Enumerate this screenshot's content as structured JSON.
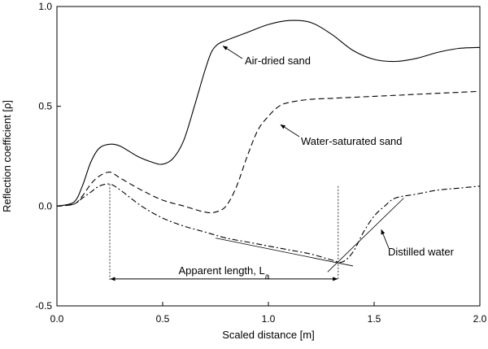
{
  "chart_data": {
    "type": "line",
    "xlabel": "Scaled distance [m]",
    "ylabel": "Reflection coefficient [ρ]",
    "xlim": [
      0.0,
      2.0
    ],
    "ylim": [
      -0.5,
      1.0
    ],
    "xticks": [
      0.0,
      0.5,
      1.0,
      1.5,
      2.0
    ],
    "xtick_labels": [
      "0.0",
      "0.5",
      "1.0",
      "1.5",
      "2.0"
    ],
    "yticks": [
      1.0,
      0.5,
      0.0,
      -0.5
    ],
    "ytick_labels": [
      "1.0",
      "0.5",
      "0.0",
      "-0.5"
    ],
    "grid": false,
    "legend": "none",
    "series": [
      {
        "name": "Air-dried sand",
        "style": "solid",
        "x": [
          0.0,
          0.08,
          0.12,
          0.16,
          0.2,
          0.25,
          0.3,
          0.38,
          0.45,
          0.5,
          0.55,
          0.6,
          0.65,
          0.7,
          0.73,
          0.76,
          0.8,
          0.9,
          1.0,
          1.1,
          1.2,
          1.3,
          1.4,
          1.5,
          1.6,
          1.7,
          1.8,
          1.9,
          2.0
        ],
        "y": [
          0.0,
          0.02,
          0.1,
          0.22,
          0.29,
          0.31,
          0.3,
          0.25,
          0.22,
          0.21,
          0.24,
          0.33,
          0.5,
          0.68,
          0.77,
          0.81,
          0.83,
          0.87,
          0.91,
          0.93,
          0.92,
          0.86,
          0.78,
          0.735,
          0.725,
          0.74,
          0.77,
          0.79,
          0.795
        ]
      },
      {
        "name": "Water-saturated sand",
        "style": "dashed",
        "x": [
          0.0,
          0.08,
          0.12,
          0.16,
          0.2,
          0.25,
          0.3,
          0.4,
          0.5,
          0.6,
          0.7,
          0.75,
          0.8,
          0.85,
          0.9,
          0.95,
          1.0,
          1.05,
          1.1,
          1.2,
          1.3,
          1.4,
          1.5,
          1.6,
          1.7,
          1.8,
          1.9,
          2.0
        ],
        "y": [
          0.0,
          0.01,
          0.05,
          0.11,
          0.15,
          0.17,
          0.14,
          0.08,
          0.03,
          0.0,
          -0.03,
          -0.03,
          0.0,
          0.1,
          0.25,
          0.38,
          0.45,
          0.5,
          0.52,
          0.535,
          0.54,
          0.545,
          0.55,
          0.555,
          0.56,
          0.565,
          0.57,
          0.575
        ]
      },
      {
        "name": "Distilled water",
        "style": "dash-dot",
        "x": [
          0.0,
          0.08,
          0.12,
          0.16,
          0.2,
          0.25,
          0.3,
          0.4,
          0.5,
          0.6,
          0.7,
          0.8,
          0.9,
          1.0,
          1.1,
          1.2,
          1.3,
          1.35,
          1.4,
          1.45,
          1.5,
          1.55,
          1.6,
          1.7,
          1.8,
          1.9,
          2.0
        ],
        "y": [
          0.0,
          0.01,
          0.04,
          0.07,
          0.1,
          0.11,
          0.08,
          0.0,
          -0.06,
          -0.1,
          -0.13,
          -0.16,
          -0.18,
          -0.2,
          -0.22,
          -0.24,
          -0.27,
          -0.28,
          -0.23,
          -0.13,
          -0.05,
          0.0,
          0.04,
          0.06,
          0.08,
          0.09,
          0.1
        ]
      }
    ],
    "annotations": [
      {
        "text": "Air-dried sand",
        "arrow_to": [
          0.77,
          0.81
        ]
      },
      {
        "text": "Water-saturated sand",
        "arrow_to": [
          1.05,
          0.42
        ]
      },
      {
        "text": "Distilled water",
        "arrow_to": [
          1.53,
          -0.11
        ]
      },
      {
        "text": "Apparent length, L",
        "subscript": "a",
        "span": [
          0.25,
          1.33
        ]
      }
    ],
    "reference_lines": {
      "start_x": 0.25,
      "end_x": 1.33,
      "tangent_1": {
        "from": [
          0.75,
          -0.16
        ],
        "to": [
          1.4,
          -0.3
        ]
      },
      "tangent_2": {
        "from": [
          1.28,
          -0.33
        ],
        "to": [
          1.64,
          0.04
        ]
      }
    }
  }
}
